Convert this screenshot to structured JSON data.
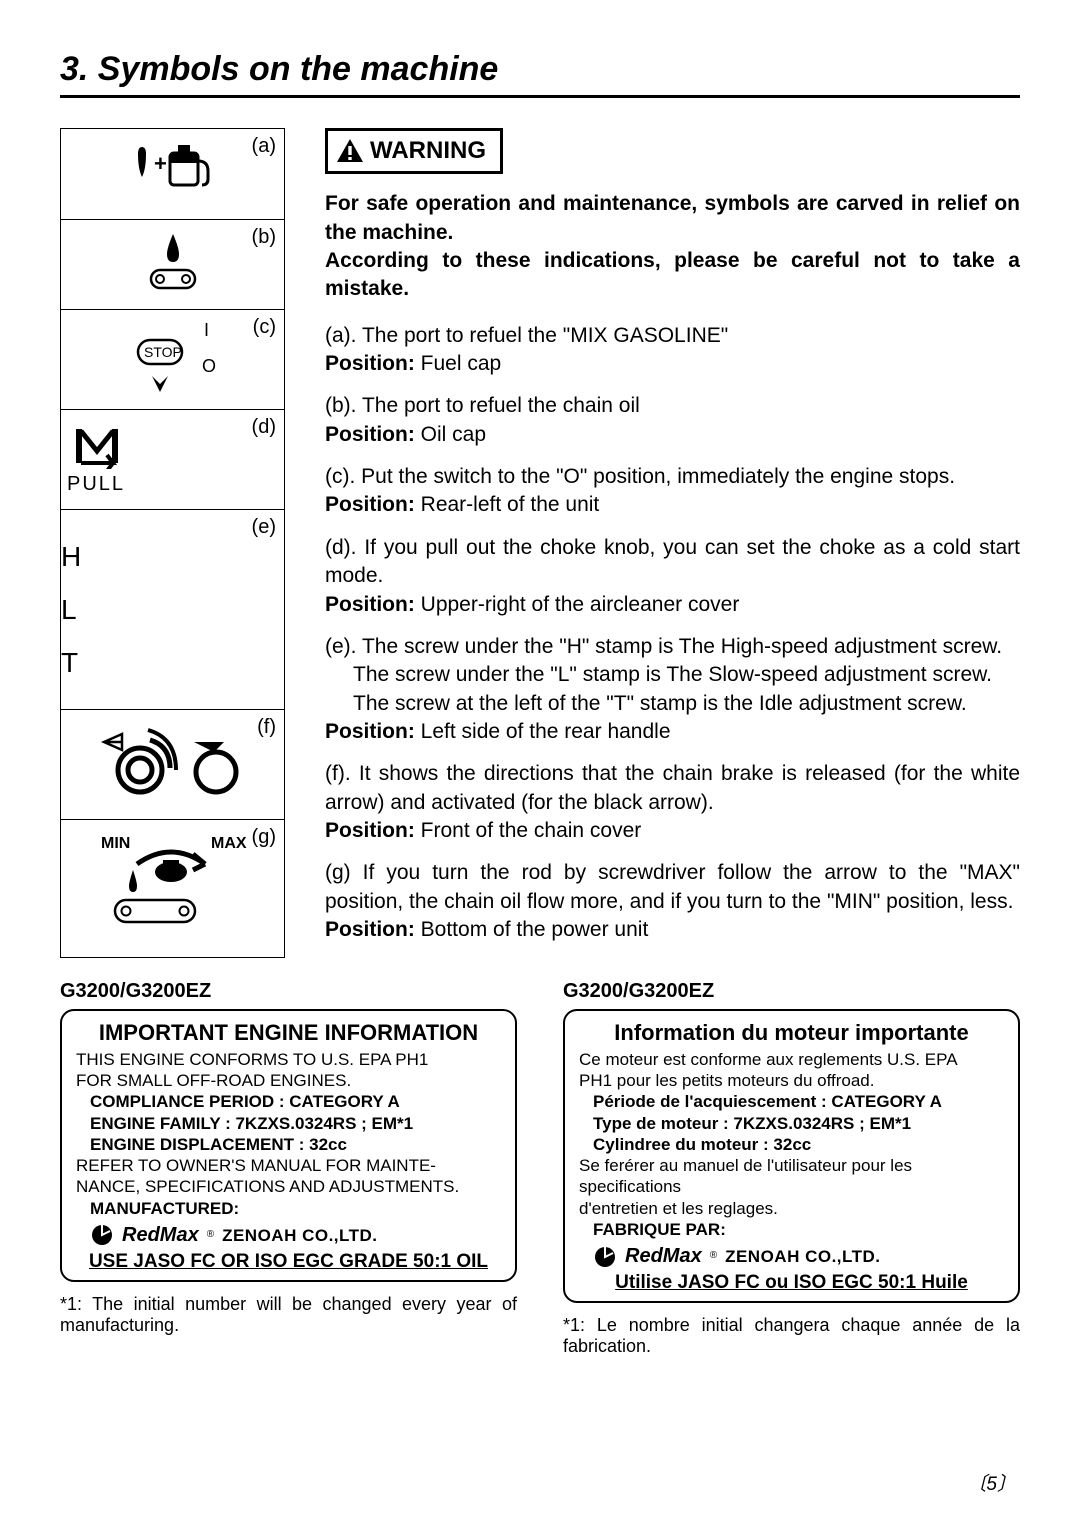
{
  "section_title": "3. Symbols on the machine",
  "symbols": [
    {
      "label": "(a)"
    },
    {
      "label": "(b)"
    },
    {
      "label": "(c)"
    },
    {
      "label": "(d)",
      "caption": "PULL"
    },
    {
      "label": "(e)",
      "letters": [
        "H",
        "L",
        "T"
      ]
    },
    {
      "label": "(f)"
    },
    {
      "label": "(g)",
      "min": "MIN",
      "max": "MAX"
    }
  ],
  "warning_label": "WARNING",
  "intro": "For safe operation and maintenance, symbols are carved in relief on the machine.\nAccording to these indications, please be careful not to take a mistake.",
  "items": [
    {
      "lead": "(a).",
      "desc": "The port to refuel the \"MIX GASOLINE\"",
      "pos_label": "Position:",
      "pos": "Fuel cap"
    },
    {
      "lead": "(b).",
      "desc": "The port to refuel the chain oil",
      "pos_label": "Position:",
      "pos": "Oil cap"
    },
    {
      "lead": "(c).",
      "desc": "Put the switch to the \"O\" position, immediately the engine stops.",
      "pos_label": "Position:",
      "pos": "Rear-left of the unit"
    },
    {
      "lead": "(d).",
      "desc": "If you pull out the choke knob, you can set the choke as a cold start mode.",
      "pos_label": "Position:",
      "pos": "Upper-right of the aircleaner cover"
    },
    {
      "lead": "(e).",
      "desc": "The screw under the \"H\" stamp is The High-speed adjustment screw.",
      "extra": [
        "The screw under the \"L\" stamp is The Slow-speed adjustment screw.",
        "The screw at the left of the \"T\" stamp is the Idle adjustment screw."
      ],
      "pos_label": "Position:",
      "pos": "Left side of the rear handle"
    },
    {
      "lead": "(f).",
      "desc": "It shows the directions that the chain brake is released (for the white arrow) and activated (for the black arrow).",
      "pos_label": "Position:",
      "pos": "Front of the chain cover"
    },
    {
      "lead": "(g)",
      "desc": "If you turn the rod by screwdriver follow the arrow to the \"MAX\" position, the chain oil flow more, and if you turn to the \"MIN\" position, less.",
      "pos_label": "Position:",
      "pos": "Bottom of the power unit"
    }
  ],
  "panel_en": {
    "model": "G3200/G3200EZ",
    "title": "IMPORTANT ENGINE INFORMATION",
    "lines": [
      {
        "t": "THIS ENGINE CONFORMS TO U.S. EPA PH1",
        "b": false,
        "i": false
      },
      {
        "t": "FOR SMALL OFF-ROAD ENGINES.",
        "b": false,
        "i": false
      },
      {
        "t": "COMPLIANCE PERIOD : CATEGORY A",
        "b": true,
        "i": true
      },
      {
        "t": "ENGINE FAMILY : 7KZXS.0324RS ; EM*1",
        "b": true,
        "i": true
      },
      {
        "t": "ENGINE DISPLACEMENT : 32cc",
        "b": true,
        "i": true
      },
      {
        "t": "REFER TO OWNER'S MANUAL FOR MAINTE-",
        "b": false,
        "i": false
      },
      {
        "t": "NANCE, SPECIFICATIONS AND ADJUSTMENTS.",
        "b": false,
        "i": false
      },
      {
        "t": "MANUFACTURED:",
        "b": true,
        "i": true
      }
    ],
    "brand": "RedMax",
    "brand_suffix": "ZENOAH CO.,LTD.",
    "oil": "USE JASO FC OR ISO EGC GRADE 50:1 OIL",
    "footnote": "*1: The initial number will be changed every year of manufacturing."
  },
  "panel_fr": {
    "model": "G3200/G3200EZ",
    "title": "Information du moteur importante",
    "lines": [
      {
        "t": "Ce moteur est conforme aux reglements U.S. EPA",
        "b": false,
        "i": false
      },
      {
        "t": "PH1 pour les petits moteurs du offroad.",
        "b": false,
        "i": false
      },
      {
        "t": "Période de l'acquiescement : CATEGORY A",
        "b": true,
        "i": true
      },
      {
        "t": "Type de moteur : 7KZXS.0324RS ; EM*1",
        "b": true,
        "i": true
      },
      {
        "t": "Cylindree du moteur : 32cc",
        "b": true,
        "i": true
      },
      {
        "t": "Se ferérer au manuel de l'utilisateur pour les specifications",
        "b": false,
        "i": false
      },
      {
        "t": "d'entretien et les reglages.",
        "b": false,
        "i": false
      },
      {
        "t": "FABRIQUE PAR:",
        "b": true,
        "i": true
      }
    ],
    "brand": "RedMax",
    "brand_suffix": "ZENOAH CO.,LTD.",
    "oil": "Utilise JASO FC ou ISO EGC 50:1 Huile",
    "footnote": "*1: Le nombre initial changera chaque année de la fabrication."
  },
  "page_number": "5",
  "colors": {
    "fg": "#000000",
    "bg": "#ffffff"
  }
}
